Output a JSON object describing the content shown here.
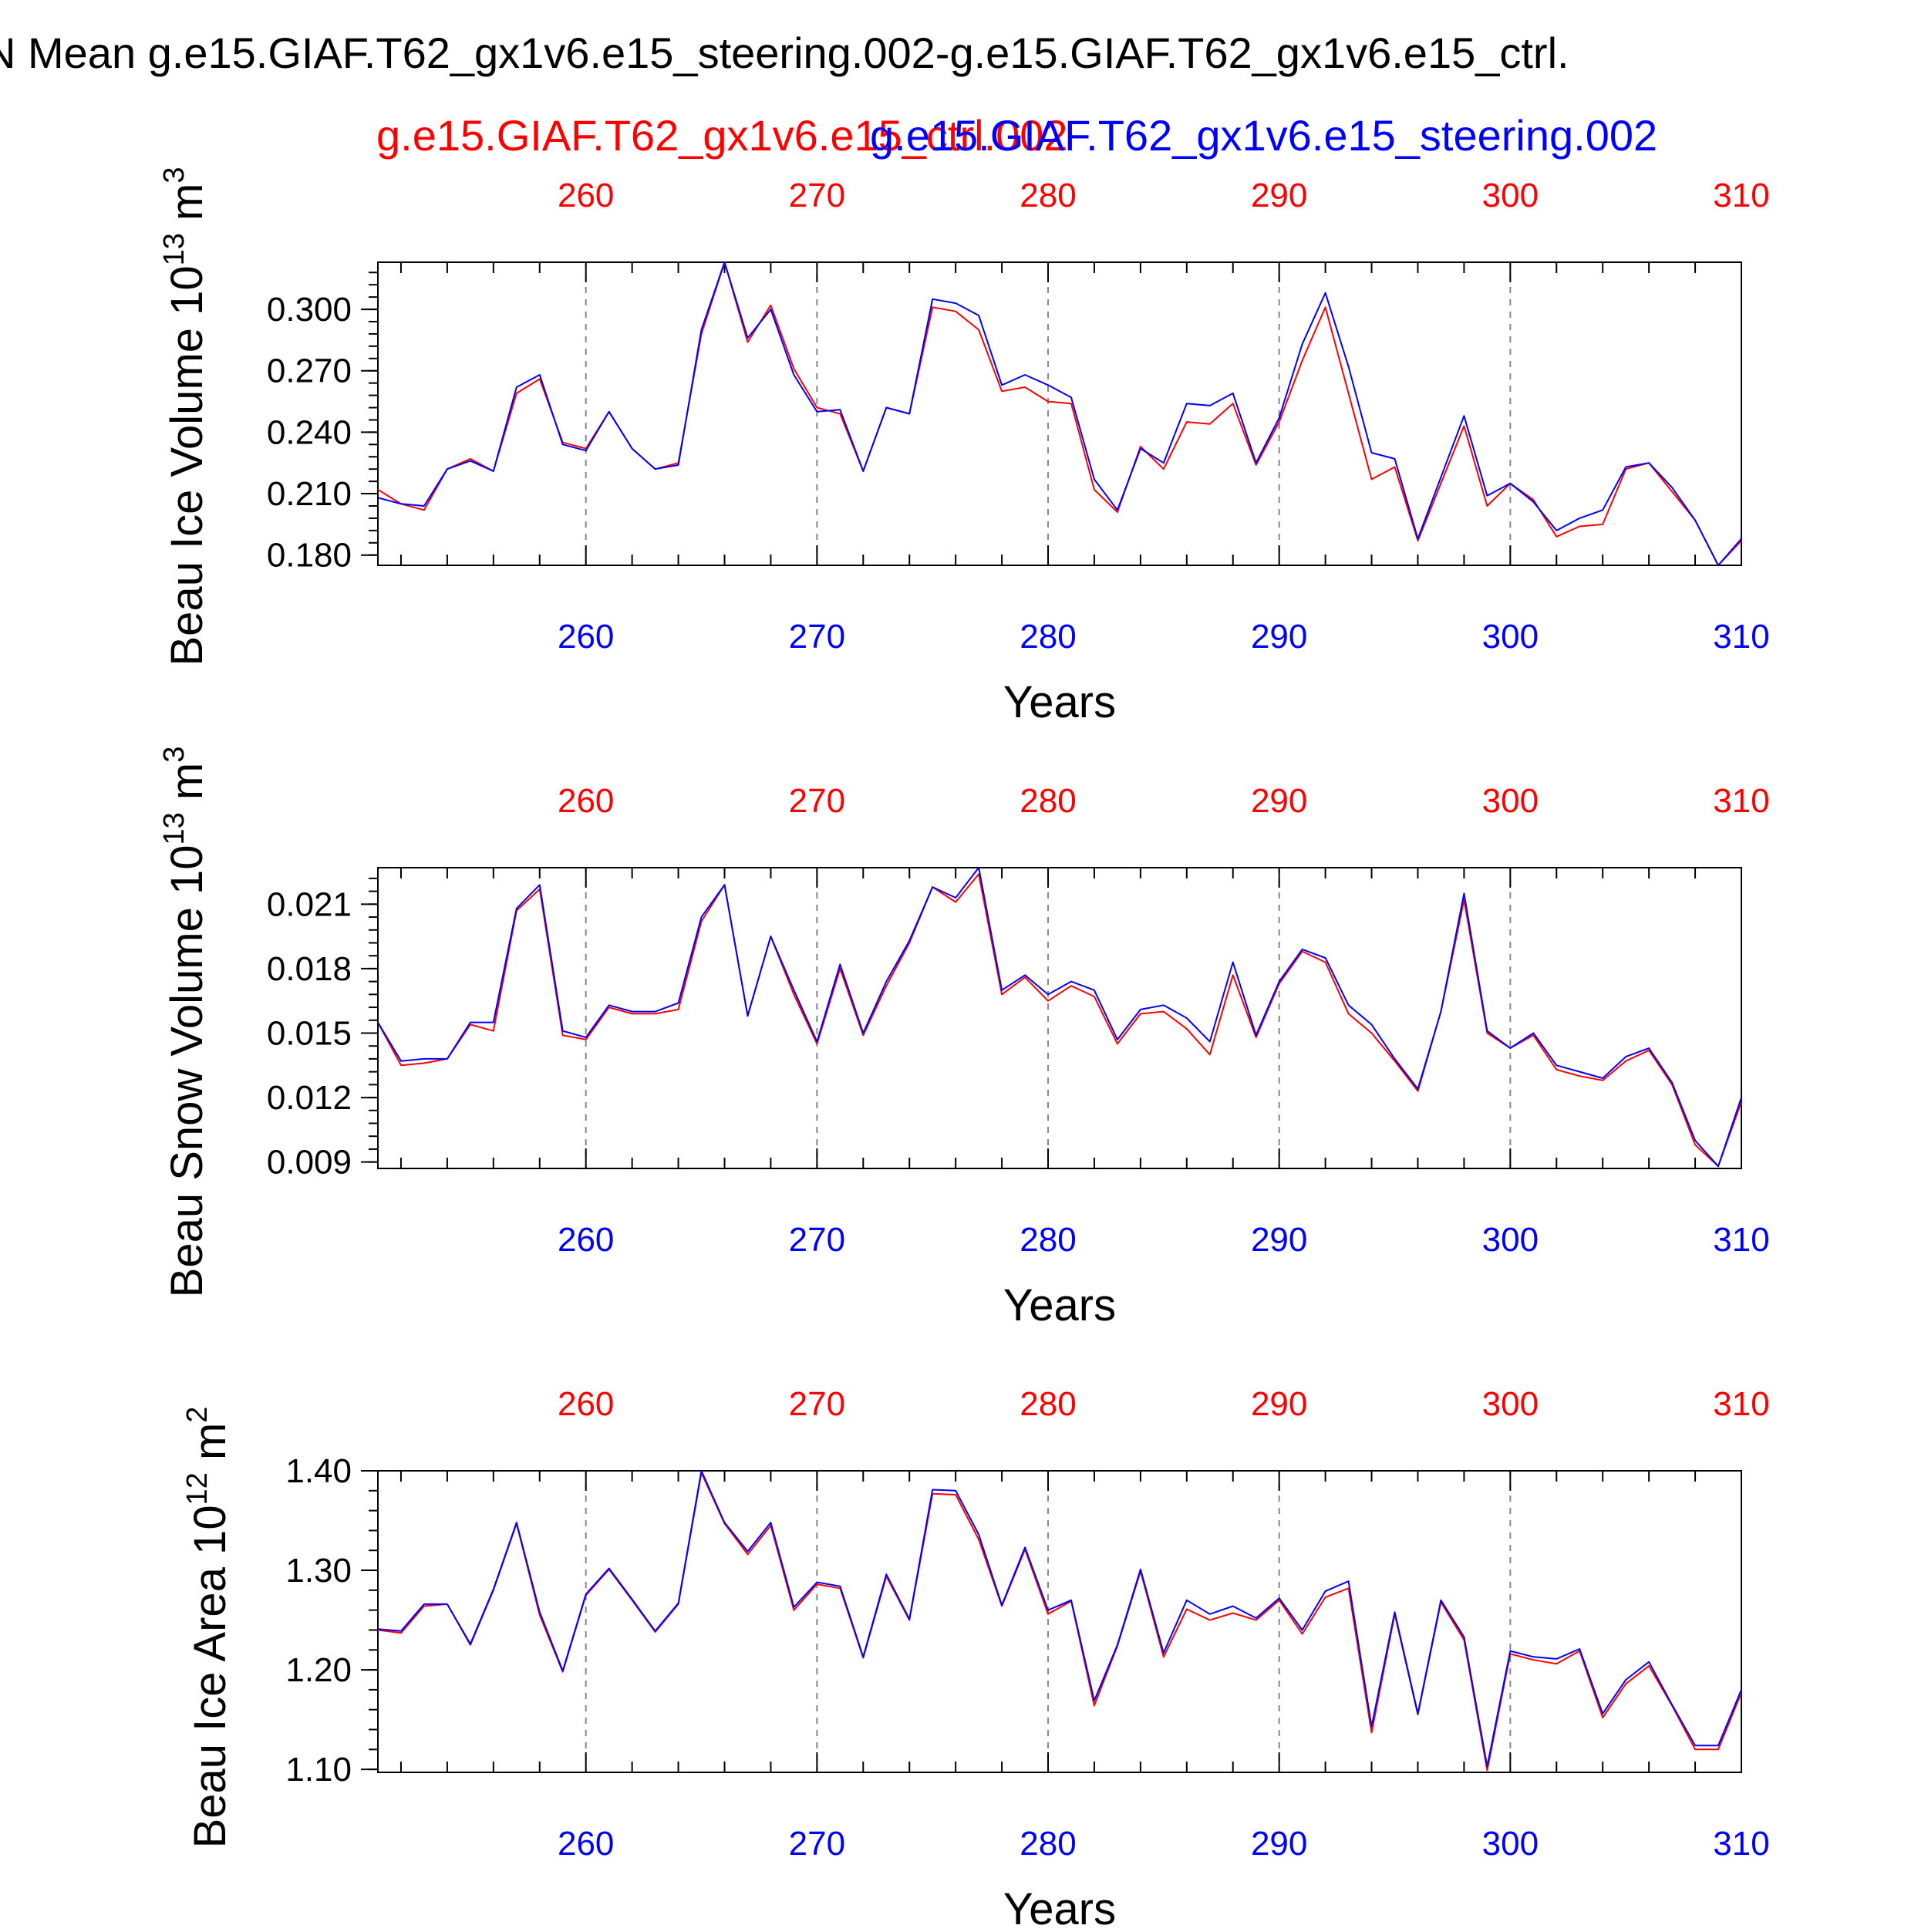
{
  "header": {
    "title": "N Mean g.e15.GIAF.T62_gx1v6.e15_steering.002-g.e15.GIAF.T62_gx1v6.e15_ctrl.",
    "case_red": "g.e15.GIAF.T62_gx1v6.e15_ctrl.002",
    "case_blue": "g.e15.GIAF.T62_gx1v6.e15_steering.002",
    "color_red": "#ff0000",
    "color_blue": "#0000ff"
  },
  "chart_data": [
    {
      "type": "line",
      "ylabel": "Beau Ice Volume 10^13 m^3",
      "ylabel_base": "Beau Ice Volume 10",
      "ylabel_exp": "13",
      "ylabel_unit": "m",
      "ylabel_unit_exp": "3",
      "xlabel": "Years",
      "xlim": [
        251,
        310
      ],
      "ylim": [
        0.175,
        0.323
      ],
      "yticks": [
        "0.180",
        "0.210",
        "0.240",
        "0.270",
        "0.300"
      ],
      "xticks": [
        "260",
        "270",
        "280",
        "290",
        "300",
        "310"
      ],
      "x": [
        251,
        252,
        253,
        254,
        255,
        256,
        257,
        258,
        259,
        260,
        261,
        262,
        263,
        264,
        265,
        266,
        267,
        268,
        269,
        270,
        271,
        272,
        273,
        274,
        275,
        276,
        277,
        278,
        279,
        280,
        281,
        282,
        283,
        284,
        285,
        286,
        287,
        288,
        289,
        290,
        291,
        292,
        293,
        294,
        295,
        296,
        297,
        298,
        299,
        300,
        301,
        302,
        303,
        304,
        305,
        306,
        307,
        308,
        309,
        310
      ],
      "series": [
        {
          "name": "g.e15.GIAF.T62_gx1v6.e15_ctrl.002",
          "color": "#ff0000",
          "values": [
            0.212,
            0.205,
            0.202,
            0.222,
            0.227,
            0.221,
            0.259,
            0.266,
            0.235,
            0.232,
            0.25,
            0.232,
            0.222,
            0.225,
            0.288,
            0.323,
            0.284,
            0.302,
            0.271,
            0.252,
            0.249,
            0.221,
            0.252,
            0.249,
            0.301,
            0.299,
            0.29,
            0.26,
            0.262,
            0.255,
            0.254,
            0.212,
            0.201,
            0.233,
            0.222,
            0.245,
            0.244,
            0.254,
            0.224,
            0.245,
            0.275,
            0.301,
            0.259,
            0.217,
            0.223,
            0.187,
            0.215,
            0.243,
            0.204,
            0.215,
            0.207,
            0.189,
            0.194,
            0.195,
            0.222,
            0.225,
            0.211,
            0.197,
            0.175,
            0.187
          ]
        },
        {
          "name": "g.e15.GIAF.T62_gx1v6.e15_steering.002",
          "color": "#0000ff",
          "values": [
            0.208,
            0.205,
            0.204,
            0.222,
            0.226,
            0.221,
            0.262,
            0.268,
            0.234,
            0.231,
            0.25,
            0.232,
            0.222,
            0.224,
            0.29,
            0.323,
            0.286,
            0.3,
            0.268,
            0.25,
            0.251,
            0.221,
            0.252,
            0.249,
            0.305,
            0.303,
            0.297,
            0.263,
            0.268,
            0.263,
            0.257,
            0.217,
            0.202,
            0.232,
            0.225,
            0.254,
            0.253,
            0.259,
            0.225,
            0.247,
            0.283,
            0.308,
            0.272,
            0.23,
            0.227,
            0.188,
            0.218,
            0.248,
            0.209,
            0.215,
            0.206,
            0.192,
            0.198,
            0.202,
            0.223,
            0.225,
            0.213,
            0.197,
            0.175,
            0.188
          ]
        }
      ]
    },
    {
      "type": "line",
      "ylabel": "Beau Snow Volume 10^13 m^3",
      "ylabel_base": "Beau Snow Volume 10",
      "ylabel_exp": "13",
      "ylabel_unit": "m",
      "ylabel_unit_exp": "3",
      "xlabel": "Years",
      "xlim": [
        251,
        310
      ],
      "ylim": [
        0.0087,
        0.0227
      ],
      "yticks": [
        "0.009",
        "0.012",
        "0.015",
        "0.018",
        "0.021"
      ],
      "xticks": [
        "260",
        "270",
        "280",
        "290",
        "300",
        "310"
      ],
      "x": [
        251,
        252,
        253,
        254,
        255,
        256,
        257,
        258,
        259,
        260,
        261,
        262,
        263,
        264,
        265,
        266,
        267,
        268,
        269,
        270,
        271,
        272,
        273,
        274,
        275,
        276,
        277,
        278,
        279,
        280,
        281,
        282,
        283,
        284,
        285,
        286,
        287,
        288,
        289,
        290,
        291,
        292,
        293,
        294,
        295,
        296,
        297,
        298,
        299,
        300,
        301,
        302,
        303,
        304,
        305,
        306,
        307,
        308,
        309,
        310
      ],
      "series": [
        {
          "name": "g.e15.GIAF.T62_gx1v6.e15_ctrl.002",
          "color": "#ff0000",
          "values": [
            0.0155,
            0.0135,
            0.0136,
            0.0138,
            0.0154,
            0.0151,
            0.0207,
            0.0217,
            0.0149,
            0.0147,
            0.0162,
            0.0159,
            0.0159,
            0.0161,
            0.0202,
            0.0219,
            0.0158,
            0.0195,
            0.0168,
            0.0145,
            0.018,
            0.0149,
            0.0172,
            0.0192,
            0.0218,
            0.0211,
            0.0224,
            0.0168,
            0.0176,
            0.0165,
            0.0172,
            0.0167,
            0.0145,
            0.0159,
            0.016,
            0.0152,
            0.014,
            0.0177,
            0.0148,
            0.0173,
            0.0188,
            0.0183,
            0.0159,
            0.015,
            0.0137,
            0.0123,
            0.016,
            0.0212,
            0.015,
            0.0143,
            0.0149,
            0.0133,
            0.013,
            0.0128,
            0.0137,
            0.0142,
            0.0126,
            0.0098,
            0.0088,
            0.0118
          ]
        },
        {
          "name": "g.e15.GIAF.T62_gx1v6.e15_steering.002",
          "color": "#0000ff",
          "values": [
            0.0155,
            0.0137,
            0.0138,
            0.0138,
            0.0155,
            0.0155,
            0.0208,
            0.0219,
            0.0151,
            0.0148,
            0.0163,
            0.016,
            0.016,
            0.0164,
            0.0204,
            0.0219,
            0.0158,
            0.0195,
            0.017,
            0.0146,
            0.0182,
            0.015,
            0.0174,
            0.0193,
            0.0218,
            0.0213,
            0.0227,
            0.017,
            0.0177,
            0.0168,
            0.0174,
            0.017,
            0.0147,
            0.0161,
            0.0163,
            0.0157,
            0.0146,
            0.0183,
            0.0149,
            0.0174,
            0.0189,
            0.0185,
            0.0163,
            0.0154,
            0.0138,
            0.0124,
            0.016,
            0.0215,
            0.0151,
            0.0143,
            0.015,
            0.0135,
            0.0132,
            0.0129,
            0.0139,
            0.0143,
            0.0127,
            0.01,
            0.0088,
            0.012
          ]
        }
      ]
    },
    {
      "type": "line",
      "ylabel": "Beau Ice Area 10^12 m^2",
      "ylabel_base": "Beau Ice Area 10",
      "ylabel_exp": "12",
      "ylabel_unit": "m",
      "ylabel_unit_exp": "2",
      "xlabel": "Years",
      "xlim": [
        251,
        310
      ],
      "ylim": [
        1.097,
        1.4
      ],
      "yticks": [
        "1.10",
        "1.20",
        "1.30",
        "1.40"
      ],
      "xticks": [
        "260",
        "270",
        "280",
        "290",
        "300",
        "310"
      ],
      "x": [
        251,
        252,
        253,
        254,
        255,
        256,
        257,
        258,
        259,
        260,
        261,
        262,
        263,
        264,
        265,
        266,
        267,
        268,
        269,
        270,
        271,
        272,
        273,
        274,
        275,
        276,
        277,
        278,
        279,
        280,
        281,
        282,
        283,
        284,
        285,
        286,
        287,
        288,
        289,
        290,
        291,
        292,
        293,
        294,
        295,
        296,
        297,
        298,
        299,
        300,
        301,
        302,
        303,
        304,
        305,
        306,
        307,
        308,
        309,
        310
      ],
      "series": [
        {
          "name": "g.e15.GIAF.T62_gx1v6.e15_ctrl.002",
          "color": "#ff0000",
          "values": [
            1.24,
            1.237,
            1.264,
            1.266,
            1.225,
            1.28,
            1.347,
            1.255,
            1.198,
            1.275,
            1.301,
            1.27,
            1.238,
            1.266,
            1.398,
            1.347,
            1.316,
            1.345,
            1.26,
            1.286,
            1.282,
            1.212,
            1.294,
            1.25,
            1.377,
            1.376,
            1.331,
            1.264,
            1.321,
            1.256,
            1.269,
            1.164,
            1.224,
            1.299,
            1.213,
            1.261,
            1.25,
            1.257,
            1.25,
            1.27,
            1.236,
            1.273,
            1.282,
            1.137,
            1.256,
            1.155,
            1.268,
            1.23,
            1.099,
            1.216,
            1.21,
            1.206,
            1.219,
            1.152,
            1.186,
            1.204,
            1.164,
            1.12,
            1.12,
            1.177
          ]
        },
        {
          "name": "g.e15.GIAF.T62_gx1v6.e15_steering.002",
          "color": "#0000ff",
          "values": [
            1.241,
            1.239,
            1.266,
            1.266,
            1.226,
            1.281,
            1.348,
            1.258,
            1.199,
            1.276,
            1.302,
            1.271,
            1.239,
            1.267,
            1.4,
            1.348,
            1.319,
            1.348,
            1.263,
            1.288,
            1.284,
            1.213,
            1.296,
            1.251,
            1.381,
            1.38,
            1.336,
            1.265,
            1.323,
            1.26,
            1.27,
            1.169,
            1.225,
            1.301,
            1.217,
            1.27,
            1.256,
            1.264,
            1.252,
            1.272,
            1.24,
            1.279,
            1.289,
            1.143,
            1.258,
            1.156,
            1.27,
            1.233,
            1.103,
            1.219,
            1.213,
            1.211,
            1.221,
            1.156,
            1.19,
            1.208,
            1.165,
            1.124,
            1.124,
            1.18
          ]
        }
      ]
    }
  ]
}
